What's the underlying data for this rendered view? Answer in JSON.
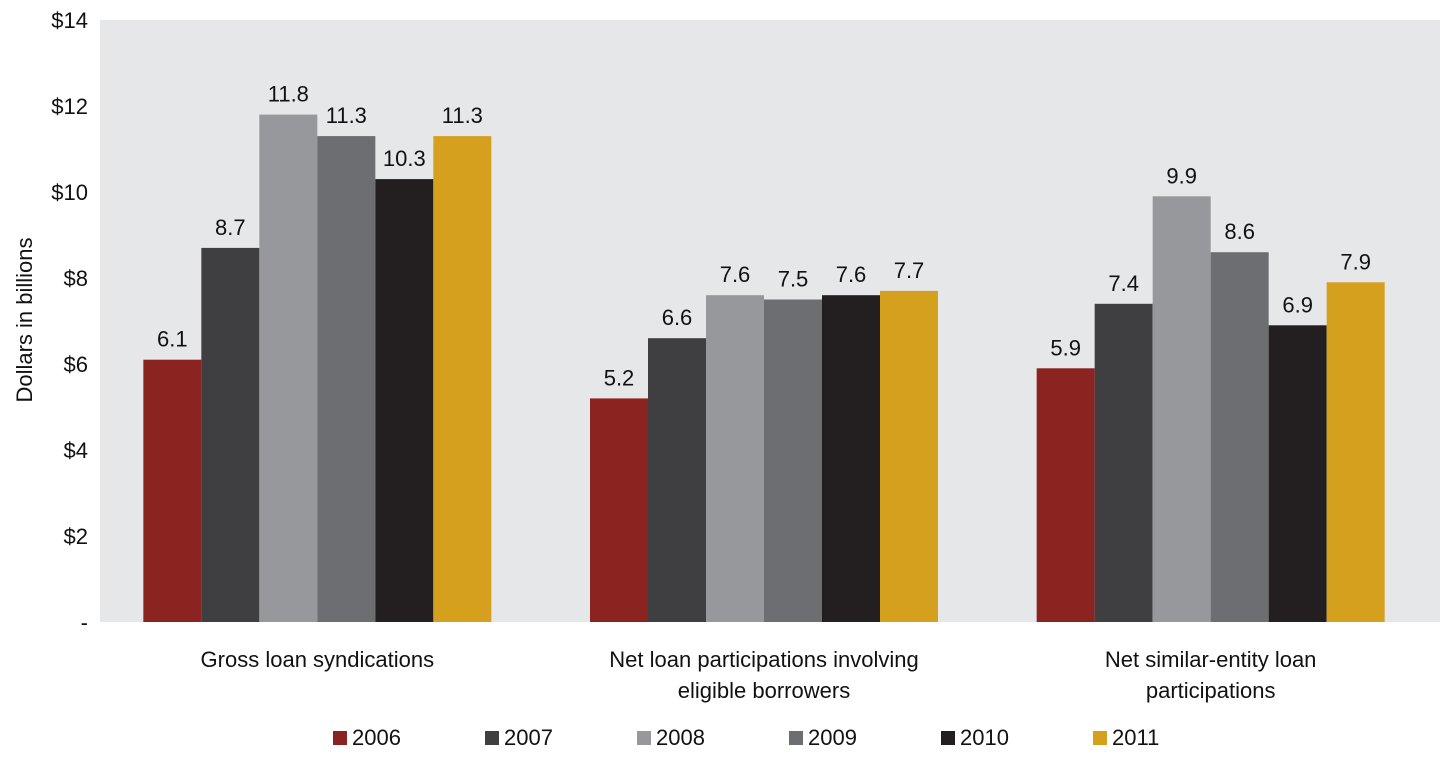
{
  "chart_data": {
    "type": "bar",
    "title": "",
    "xlabel": "",
    "ylabel": "Dollars in billions",
    "ylim": [
      0,
      14
    ],
    "yticks": [
      {
        "value": 0,
        "label": "-"
      },
      {
        "value": 2,
        "label": "$2"
      },
      {
        "value": 4,
        "label": "$4"
      },
      {
        "value": 6,
        "label": "$6"
      },
      {
        "value": 8,
        "label": "$8"
      },
      {
        "value": 10,
        "label": "$10"
      },
      {
        "value": 12,
        "label": "$12"
      },
      {
        "value": 14,
        "label": "$14"
      }
    ],
    "grid": false,
    "legend_position": "bottom",
    "categories": [
      [
        "Gross loan syndications"
      ],
      [
        "Net loan participations involving",
        "eligible borrowers"
      ],
      [
        "Net similar-entity loan",
        "participations"
      ]
    ],
    "series": [
      {
        "name": "2006",
        "color": "#8b2320",
        "values": [
          6.1,
          5.2,
          5.9
        ]
      },
      {
        "name": "2007",
        "color": "#3f3f41",
        "values": [
          8.7,
          6.6,
          7.4
        ]
      },
      {
        "name": "2008",
        "color": "#97989b",
        "values": [
          11.8,
          7.6,
          9.9
        ]
      },
      {
        "name": "2009",
        "color": "#6d6e71",
        "values": [
          11.3,
          7.5,
          8.6
        ]
      },
      {
        "name": "2010",
        "color": "#231f20",
        "values": [
          10.3,
          7.6,
          6.9
        ]
      },
      {
        "name": "2011",
        "color": "#d4a01e",
        "values": [
          11.3,
          7.7,
          7.9
        ]
      }
    ],
    "plot_background": "#e6e7e8"
  }
}
